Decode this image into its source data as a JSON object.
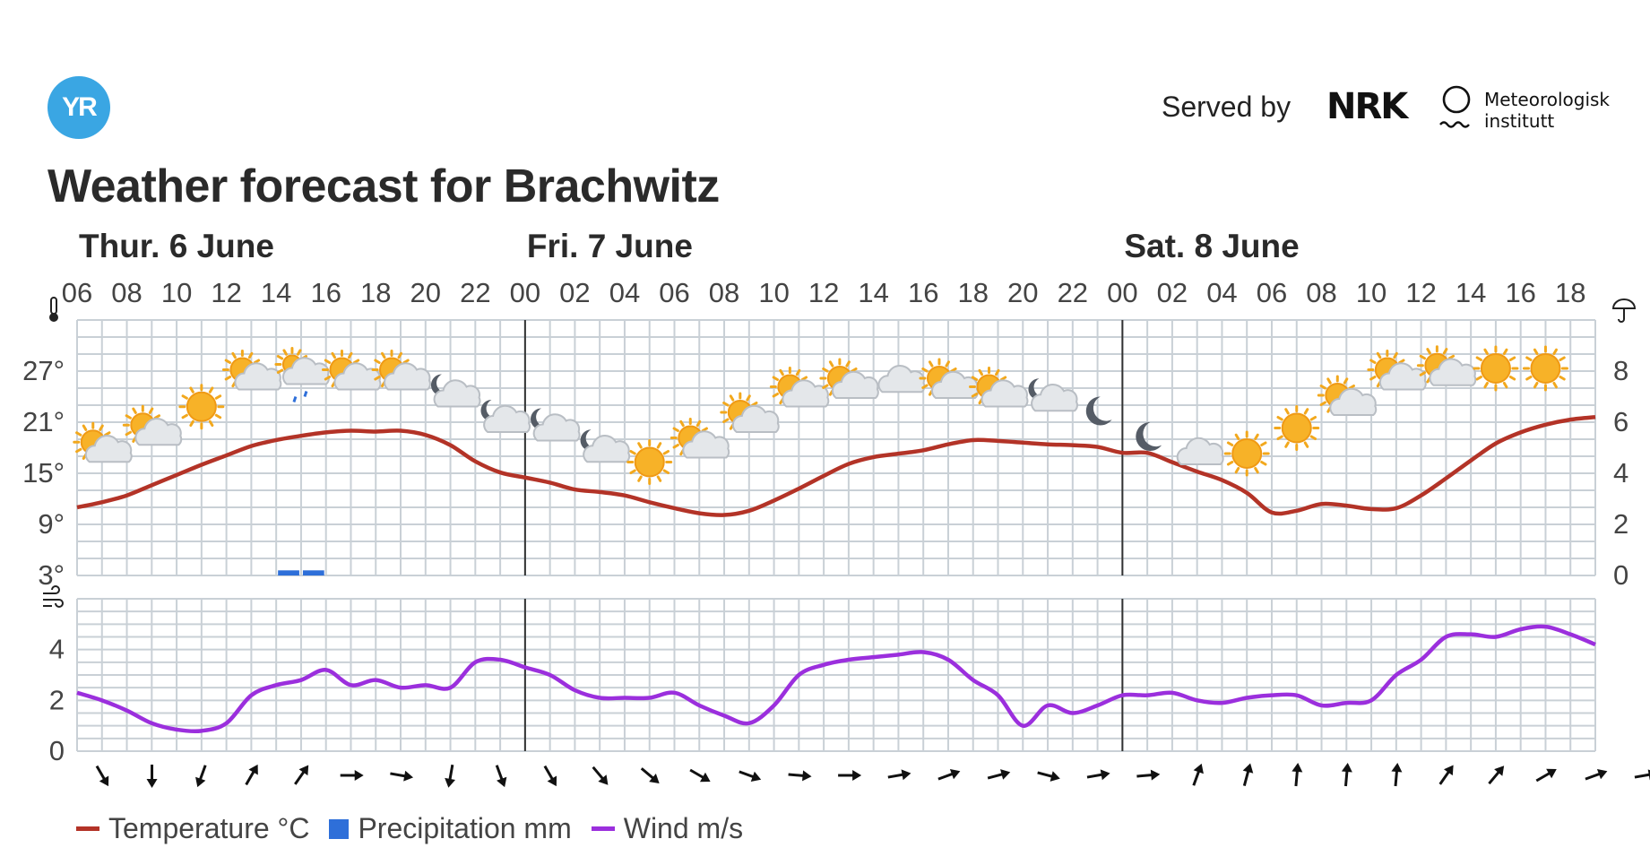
{
  "header": {
    "logo_text": "YR",
    "served_by": "Served by",
    "nrk_text": "NRK",
    "met_line1": "Meteorologisk",
    "met_line2": "institutt"
  },
  "title": "Weather forecast for Brachwitz",
  "colors": {
    "temperature": "#b33327",
    "precipitation": "#2e6fd9",
    "wind": "#9b2fdd",
    "grid": "#c9d0d6",
    "day_divider": "#333333",
    "logo": "#3aa6e3"
  },
  "legend": {
    "temperature": "Temperature °C",
    "precipitation": "Precipitation mm",
    "wind": "Wind m/s"
  },
  "chart_data": {
    "type": "line",
    "days": [
      {
        "label": "Thur. 6 June",
        "start_hour_index": 0
      },
      {
        "label": "Fri. 7 June",
        "start_hour_index": 9
      },
      {
        "label": "Sat. 8 June",
        "start_hour_index": 21
      }
    ],
    "x_ticks": [
      "06",
      "08",
      "10",
      "12",
      "14",
      "16",
      "18",
      "20",
      "22",
      "00",
      "02",
      "04",
      "06",
      "08",
      "10",
      "12",
      "14",
      "16",
      "18",
      "20",
      "22",
      "00",
      "02",
      "04",
      "06",
      "08",
      "10",
      "12",
      "14",
      "16",
      "18"
    ],
    "temperature_axis": {
      "ticks": [
        "3°",
        "9°",
        "15°",
        "21°",
        "27°"
      ],
      "ylim": [
        3,
        33
      ],
      "icon": "thermometer-icon"
    },
    "precipitation_axis": {
      "ticks": [
        "0",
        "2",
        "4",
        "6",
        "8"
      ],
      "ylim": [
        0,
        10
      ],
      "icon": "umbrella-icon"
    },
    "wind_axis": {
      "ticks": [
        "0",
        "2",
        "4"
      ],
      "ylim": [
        0,
        6
      ],
      "icon": "wind-icon"
    },
    "hours_from_start": [
      0,
      1,
      2,
      3,
      4,
      5,
      6,
      7,
      8,
      9,
      10,
      11,
      12,
      13,
      14,
      15,
      16,
      17,
      18,
      19,
      20,
      21,
      22,
      23,
      24,
      25,
      26,
      27,
      28,
      29,
      30,
      31,
      32,
      33,
      34,
      35,
      36,
      37,
      38,
      39,
      40,
      41,
      42,
      43,
      44,
      45,
      46,
      47,
      48,
      49,
      50,
      51,
      52,
      53,
      54,
      55,
      56,
      57,
      58,
      59,
      60,
      61
    ],
    "series": [
      {
        "name": "Temperature °C",
        "values": [
          11.0,
          11.6,
          12.4,
          13.6,
          14.8,
          16.0,
          17.1,
          18.2,
          18.9,
          19.4,
          19.8,
          20.0,
          19.9,
          20.0,
          19.5,
          18.3,
          16.4,
          15.1,
          14.5,
          13.9,
          13.1,
          12.8,
          12.4,
          11.6,
          10.9,
          10.3,
          10.1,
          10.6,
          11.8,
          13.2,
          14.7,
          16.1,
          16.9,
          17.3,
          17.7,
          18.4,
          18.9,
          18.8,
          18.6,
          18.4,
          18.3,
          18.1,
          17.4,
          17.4,
          16.3,
          15.2,
          14.2,
          12.7,
          10.4,
          10.6,
          11.4,
          11.2,
          10.8,
          10.9,
          12.4,
          14.4,
          16.5,
          18.5,
          19.8,
          20.7,
          21.3,
          21.6
        ]
      },
      {
        "name": "Precipitation mm",
        "values": [
          0,
          0,
          0,
          0,
          0,
          0,
          0,
          0,
          0.2,
          0.2,
          0,
          0,
          0,
          0,
          0,
          0,
          0,
          0,
          0,
          0,
          0,
          0,
          0,
          0,
          0,
          0,
          0,
          0,
          0,
          0,
          0,
          0,
          0,
          0,
          0,
          0,
          0,
          0,
          0,
          0,
          0,
          0,
          0,
          0,
          0,
          0,
          0,
          0,
          0,
          0,
          0,
          0,
          0,
          0,
          0,
          0,
          0,
          0,
          0,
          0,
          0,
          0
        ]
      },
      {
        "name": "Wind m/s",
        "values": [
          2.3,
          2.0,
          1.6,
          1.1,
          0.85,
          0.8,
          1.1,
          2.2,
          2.6,
          2.8,
          3.2,
          2.6,
          2.8,
          2.5,
          2.6,
          2.5,
          3.5,
          3.6,
          3.3,
          3.0,
          2.4,
          2.1,
          2.1,
          2.1,
          2.3,
          1.8,
          1.4,
          1.1,
          1.8,
          3.0,
          3.4,
          3.6,
          3.7,
          3.8,
          3.9,
          3.6,
          2.8,
          2.2,
          1.0,
          1.8,
          1.5,
          1.8,
          2.2,
          2.2,
          2.3,
          2.0,
          1.9,
          2.1,
          2.2,
          2.2,
          1.8,
          1.9,
          2.0,
          3.0,
          3.6,
          4.5,
          4.6,
          4.5,
          4.8,
          4.9,
          4.6,
          4.2
        ]
      }
    ],
    "weather_icons": [
      {
        "hour": 1,
        "symbol": "partly-cloudy-day",
        "temp_anchor": 15.5
      },
      {
        "hour": 3,
        "symbol": "partly-cloudy-day",
        "temp_anchor": 17.5
      },
      {
        "hour": 5,
        "symbol": "clear-sun",
        "temp_anchor": 20.5
      },
      {
        "hour": 7,
        "symbol": "partly-cloudy-day",
        "temp_anchor": 24.0
      },
      {
        "hour": 9,
        "symbol": "light-rain-cloud",
        "temp_anchor": 24.0
      },
      {
        "hour": 11,
        "symbol": "partly-cloudy-day",
        "temp_anchor": 24.0
      },
      {
        "hour": 13,
        "symbol": "partly-cloudy-day",
        "temp_anchor": 24.0
      },
      {
        "hour": 15,
        "symbol": "partly-cloudy-night",
        "temp_anchor": 22.0
      },
      {
        "hour": 17,
        "symbol": "partly-cloudy-night",
        "temp_anchor": 19.0
      },
      {
        "hour": 19,
        "symbol": "partly-cloudy-night",
        "temp_anchor": 18.0
      },
      {
        "hour": 21,
        "symbol": "partly-cloudy-night",
        "temp_anchor": 15.5
      },
      {
        "hour": 23,
        "symbol": "clear-sun",
        "temp_anchor": 14.0
      },
      {
        "hour": 25,
        "symbol": "partly-cloudy-day",
        "temp_anchor": 16.0
      },
      {
        "hour": 27,
        "symbol": "partly-cloudy-day",
        "temp_anchor": 19.0
      },
      {
        "hour": 29,
        "symbol": "partly-cloudy-day",
        "temp_anchor": 22.0
      },
      {
        "hour": 31,
        "symbol": "partly-cloudy-day",
        "temp_anchor": 23.0
      },
      {
        "hour": 33,
        "symbol": "cloudy",
        "temp_anchor": 23.5
      },
      {
        "hour": 35,
        "symbol": "partly-cloudy-day",
        "temp_anchor": 23.0
      },
      {
        "hour": 37,
        "symbol": "partly-cloudy-day",
        "temp_anchor": 22.0
      },
      {
        "hour": 39,
        "symbol": "partly-cloudy-night",
        "temp_anchor": 21.5
      },
      {
        "hour": 41,
        "symbol": "clear-night",
        "temp_anchor": 20.0
      },
      {
        "hour": 43,
        "symbol": "clear-night",
        "temp_anchor": 17.0
      },
      {
        "hour": 45,
        "symbol": "cloudy",
        "temp_anchor": 15.0
      },
      {
        "hour": 47,
        "symbol": "clear-sun",
        "temp_anchor": 15.0
      },
      {
        "hour": 49,
        "symbol": "clear-sun",
        "temp_anchor": 18.0
      },
      {
        "hour": 51,
        "symbol": "partly-cloudy-day",
        "temp_anchor": 21.0
      },
      {
        "hour": 53,
        "symbol": "partly-cloudy-day",
        "temp_anchor": 24.0
      },
      {
        "hour": 55,
        "symbol": "partly-cloudy-day",
        "temp_anchor": 24.5
      },
      {
        "hour": 57,
        "symbol": "clear-sun",
        "temp_anchor": 25.0
      },
      {
        "hour": 59,
        "symbol": "clear-sun",
        "temp_anchor": 25.0
      }
    ],
    "wind_directions_deg": [
      150,
      180,
      200,
      30,
      35,
      90,
      100,
      190,
      160,
      150,
      140,
      130,
      120,
      110,
      95,
      90,
      80,
      70,
      75,
      105,
      80,
      85,
      20,
      15,
      5,
      5,
      5,
      35,
      40,
      60,
      70,
      80
    ],
    "grid": true
  }
}
